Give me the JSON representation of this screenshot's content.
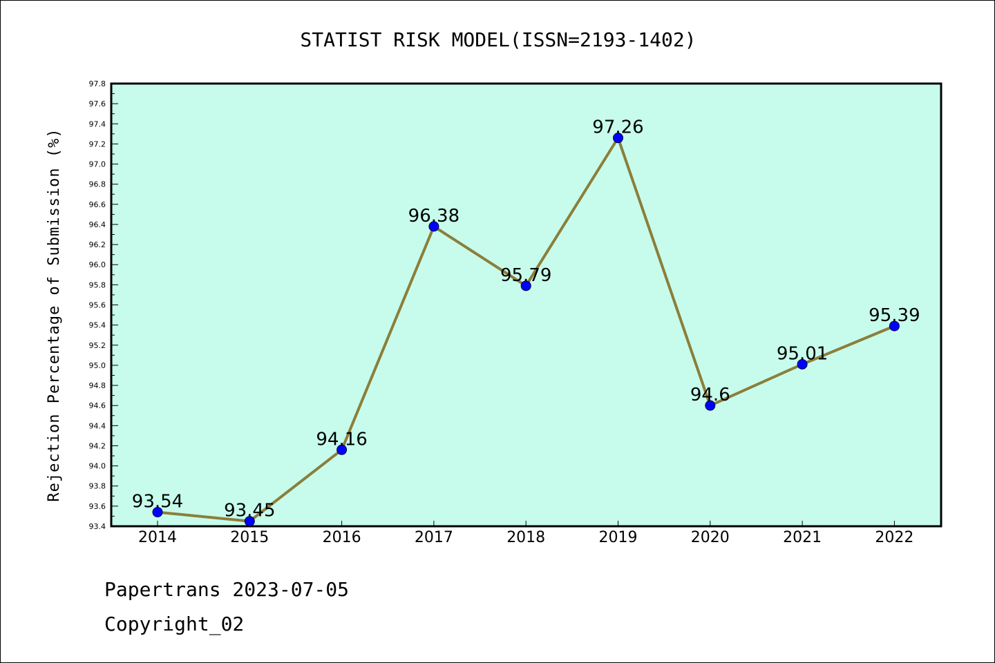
{
  "chart_data": {
    "type": "line",
    "title": "STATIST RISK MODEL(ISSN=2193-1402)",
    "xlabel": "",
    "ylabel": "Rejection Percentage of Submission (%)",
    "categories": [
      "2014",
      "2015",
      "2016",
      "2017",
      "2018",
      "2019",
      "2020",
      "2021",
      "2022"
    ],
    "series": [
      {
        "values": [
          93.54,
          93.45,
          94.16,
          96.38,
          95.79,
          97.26,
          94.6,
          95.01,
          95.39
        ],
        "labels": [
          "93.54",
          "93.45",
          "94.16",
          "96.38",
          "95.79",
          "97.26",
          "94.6",
          "95.01",
          "95.39"
        ]
      }
    ],
    "ylim": [
      93.4,
      97.8
    ],
    "yticks": [
      "93.4",
      "93.6",
      "93.8",
      "94.0",
      "94.2",
      "94.4",
      "94.6",
      "94.8",
      "95.0",
      "95.2",
      "95.4",
      "95.6",
      "95.8",
      "96.0",
      "96.2",
      "96.4",
      "96.6",
      "96.8",
      "97.0",
      "97.2",
      "97.4",
      "97.6",
      "97.8"
    ],
    "grid": false,
    "legend": "none",
    "colors": {
      "plot_background": "#c7fcec",
      "line": "#8b7e3a",
      "marker": "#0000ff"
    }
  },
  "footer": {
    "line1": "Papertrans 2023-07-05",
    "line2": "Copyright_02"
  }
}
